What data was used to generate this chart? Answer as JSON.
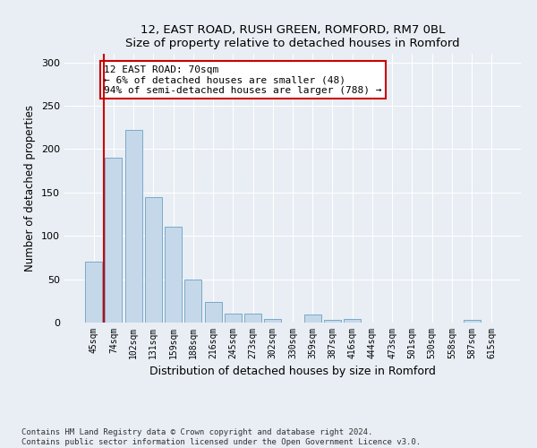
{
  "title1": "12, EAST ROAD, RUSH GREEN, ROMFORD, RM7 0BL",
  "title2": "Size of property relative to detached houses in Romford",
  "xlabel": "Distribution of detached houses by size in Romford",
  "ylabel": "Number of detached properties",
  "categories": [
    "45sqm",
    "74sqm",
    "102sqm",
    "131sqm",
    "159sqm",
    "188sqm",
    "216sqm",
    "245sqm",
    "273sqm",
    "302sqm",
    "330sqm",
    "359sqm",
    "387sqm",
    "416sqm",
    "444sqm",
    "473sqm",
    "501sqm",
    "530sqm",
    "558sqm",
    "587sqm",
    "615sqm"
  ],
  "values": [
    70,
    190,
    222,
    145,
    111,
    50,
    24,
    10,
    10,
    4,
    0,
    9,
    3,
    4,
    0,
    0,
    0,
    0,
    0,
    3,
    0
  ],
  "bar_color": "#c5d8ea",
  "bar_edge_color": "#7aaac8",
  "highlight_color": "#cc0000",
  "annotation_text": "12 EAST ROAD: 70sqm\n← 6% of detached houses are smaller (48)\n94% of semi-detached houses are larger (788) →",
  "annotation_box_color": "#ffffff",
  "annotation_box_edge": "#cc0000",
  "ylim": [
    0,
    310
  ],
  "yticks": [
    0,
    50,
    100,
    150,
    200,
    250,
    300
  ],
  "footer1": "Contains HM Land Registry data © Crown copyright and database right 2024.",
  "footer2": "Contains public sector information licensed under the Open Government Licence v3.0.",
  "bg_color": "#e8eef4",
  "plot_bg_color": "#e8eef4"
}
